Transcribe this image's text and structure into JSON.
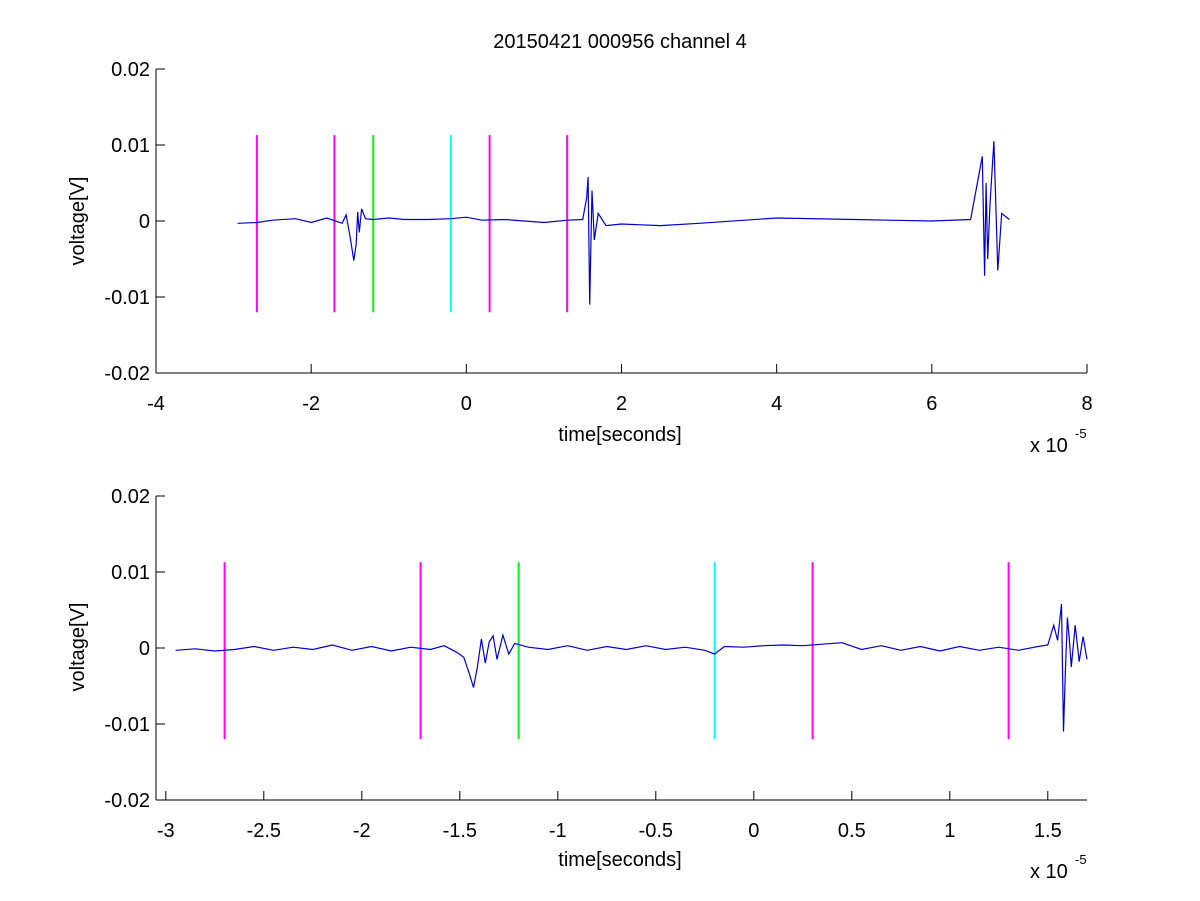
{
  "title": "20150421 000956 channel 4",
  "colors": {
    "trace": "#0000cc",
    "magenta": "#ff00ff",
    "green": "#00ff00",
    "cyan": "#00ffff",
    "axes": "#000000",
    "background": "#ffffff"
  },
  "chart_data": [
    {
      "type": "line",
      "title": "20150421 000956 channel 4",
      "xlabel": "time[seconds]",
      "ylabel": "voltage[V]",
      "x_multiplier_base": "x 10",
      "x_multiplier_exp": "-5",
      "xlim": [
        -4,
        8
      ],
      "ylim": [
        -0.02,
        0.02
      ],
      "xticks": [
        -4,
        -2,
        0,
        2,
        4,
        6,
        8
      ],
      "xtick_labels": [
        "-4",
        "-2",
        "0",
        "2",
        "4",
        "6",
        "8"
      ],
      "yticks": [
        0.02,
        0.01,
        0,
        -0.01,
        -0.02
      ],
      "ytick_labels": [
        "0.02",
        "0.01",
        "0",
        "-0.01",
        "-0.02"
      ],
      "grid": false,
      "series": [
        {
          "color": "#0000cc",
          "x": [
            -2.95,
            -2.7,
            -2.5,
            -2.2,
            -2.0,
            -1.8,
            -1.6,
            -1.55,
            -1.5,
            -1.45,
            -1.42,
            -1.4,
            -1.38,
            -1.35,
            -1.3,
            -1.2,
            -1.0,
            -0.8,
            -0.5,
            -0.2,
            0.0,
            0.2,
            0.5,
            1.0,
            1.3,
            1.5,
            1.55,
            1.57,
            1.59,
            1.62,
            1.65,
            1.7,
            1.8,
            2.0,
            2.5,
            3.0,
            4.0,
            5.0,
            6.0,
            6.5,
            6.65,
            6.68,
            6.7,
            6.72,
            6.75,
            6.8,
            6.85,
            6.9,
            7.0
          ],
          "y": [
            -0.0003,
            -0.0002,
            0.0001,
            0.0003,
            -0.0002,
            0.0004,
            -0.0003,
            0.0008,
            -0.002,
            -0.0052,
            -0.003,
            0.0012,
            -0.0015,
            0.0016,
            0.0003,
            0.0002,
            0.0004,
            0.0002,
            0.0002,
            0.0003,
            0.0005,
            0.0001,
            0.0002,
            -0.0002,
            0.0001,
            0.0002,
            0.003,
            0.0058,
            -0.011,
            0.004,
            -0.0025,
            0.001,
            -0.0006,
            -0.0004,
            -0.0006,
            -0.0003,
            0.0004,
            0.0002,
            0.0,
            0.0002,
            0.0085,
            -0.0072,
            0.005,
            -0.005,
            0.0022,
            0.0105,
            -0.0065,
            0.001,
            0.0002
          ]
        }
      ],
      "vertical_markers": [
        {
          "x": -2.7,
          "color": "#ff00ff"
        },
        {
          "x": -1.7,
          "color": "#ff00ff"
        },
        {
          "x": -1.2,
          "color": "#00ff00"
        },
        {
          "x": -0.2,
          "color": "#00ffff"
        },
        {
          "x": 0.3,
          "color": "#ff00ff"
        },
        {
          "x": 1.3,
          "color": "#ff00ff"
        }
      ],
      "marker_yrange": [
        -0.012,
        0.0113
      ]
    },
    {
      "type": "line",
      "xlabel": "time[seconds]",
      "ylabel": "voltage[V]",
      "x_multiplier_base": "x 10",
      "x_multiplier_exp": "-5",
      "xlim": [
        -3.05,
        1.7
      ],
      "ylim": [
        -0.02,
        0.02
      ],
      "xticks": [
        -3,
        -2.5,
        -2,
        -1.5,
        -1,
        -0.5,
        0,
        0.5,
        1,
        1.5
      ],
      "xtick_labels": [
        "-3",
        "-2.5",
        "-2",
        "-1.5",
        "-1",
        "-0.5",
        "0",
        "0.5",
        "1",
        "1.5"
      ],
      "yticks": [
        0.02,
        0.01,
        0,
        -0.01,
        -0.02
      ],
      "ytick_labels": [
        "0.02",
        "0.01",
        "0",
        "-0.01",
        "-0.02"
      ],
      "grid": false,
      "series": [
        {
          "color": "#0000cc",
          "x": [
            -2.95,
            -2.85,
            -2.75,
            -2.65,
            -2.55,
            -2.45,
            -2.35,
            -2.25,
            -2.15,
            -2.05,
            -1.95,
            -1.85,
            -1.75,
            -1.65,
            -1.58,
            -1.52,
            -1.48,
            -1.45,
            -1.43,
            -1.41,
            -1.39,
            -1.37,
            -1.35,
            -1.33,
            -1.31,
            -1.28,
            -1.25,
            -1.22,
            -1.15,
            -1.05,
            -0.95,
            -0.85,
            -0.75,
            -0.65,
            -0.55,
            -0.45,
            -0.35,
            -0.25,
            -0.2,
            -0.15,
            -0.05,
            0.05,
            0.15,
            0.25,
            0.35,
            0.45,
            0.55,
            0.65,
            0.75,
            0.85,
            0.95,
            1.05,
            1.15,
            1.25,
            1.35,
            1.45,
            1.5,
            1.53,
            1.55,
            1.57,
            1.58,
            1.59,
            1.6,
            1.61,
            1.62,
            1.64,
            1.66,
            1.68,
            1.7
          ],
          "y": [
            -0.0003,
            -0.0001,
            -0.0004,
            -0.0002,
            0.0002,
            -0.0003,
            0.0001,
            -0.0002,
            0.0004,
            -0.0003,
            0.0002,
            -0.0004,
            0.0001,
            -0.0002,
            0.0003,
            -0.0005,
            -0.0012,
            -0.0035,
            -0.0052,
            -0.0025,
            0.0012,
            -0.002,
            0.0008,
            0.0016,
            -0.0015,
            0.0017,
            -0.0008,
            0.0006,
            0.0001,
            -0.0002,
            0.0003,
            -0.0003,
            0.0002,
            -0.0002,
            0.0003,
            -0.0002,
            0.0001,
            -0.0003,
            -0.0008,
            0.0002,
            0.0001,
            0.0003,
            0.0004,
            0.0003,
            0.0005,
            0.0007,
            -0.0002,
            0.0003,
            -0.0003,
            0.0002,
            -0.0004,
            0.0002,
            -0.0003,
            0.0001,
            -0.0003,
            0.0002,
            0.0004,
            0.003,
            0.001,
            0.0058,
            -0.011,
            -0.003,
            0.004,
            0.001,
            -0.0025,
            0.003,
            -0.0018,
            0.0015,
            -0.0015
          ]
        }
      ],
      "vertical_markers": [
        {
          "x": -2.7,
          "color": "#ff00ff"
        },
        {
          "x": -1.7,
          "color": "#ff00ff"
        },
        {
          "x": -1.2,
          "color": "#00ff00"
        },
        {
          "x": -0.2,
          "color": "#00ffff"
        },
        {
          "x": 0.3,
          "color": "#ff00ff"
        },
        {
          "x": 1.3,
          "color": "#ff00ff"
        }
      ],
      "marker_yrange": [
        -0.012,
        0.0113
      ]
    }
  ]
}
